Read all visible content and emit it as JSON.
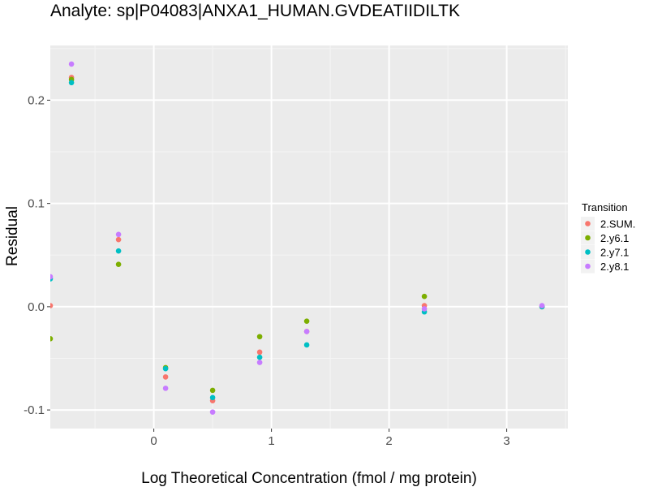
{
  "chart_data": {
    "type": "scatter",
    "title": "Analyte: sp|P04083|ANXA1_HUMAN.GVDEATIIDILTK",
    "xlabel": "Log Theoretical Concentration (fmol / mg protein)",
    "ylabel": "Residual",
    "xlim": [
      -0.88,
      3.52
    ],
    "ylim": [
      -0.118,
      0.253
    ],
    "x_ticks": [
      0,
      1,
      2,
      3
    ],
    "x_tick_labels": [
      "0",
      "1",
      "2",
      "3"
    ],
    "y_ticks": [
      -0.1,
      0.0,
      0.1,
      0.2
    ],
    "y_tick_labels": [
      "-0.1",
      "0.0",
      "0.1",
      "0.2"
    ],
    "grid": true,
    "legend": {
      "title": "Transition",
      "placement": "right"
    },
    "series": [
      {
        "name": "2.SUM.",
        "color": "#F8766D",
        "x": [
          -0.88,
          -0.7,
          -0.3,
          0.1,
          0.5,
          0.9,
          1.3,
          2.3,
          3.3
        ],
        "y": [
          0.001,
          0.222,
          0.065,
          -0.068,
          -0.091,
          -0.044,
          -0.024,
          0.001,
          0.0
        ]
      },
      {
        "name": "2.y6.1",
        "color": "#7CAE00",
        "x": [
          -0.88,
          -0.7,
          -0.3,
          0.1,
          0.5,
          0.9,
          1.3,
          2.3,
          3.3
        ],
        "y": [
          -0.031,
          0.22,
          0.041,
          -0.059,
          -0.081,
          -0.029,
          -0.014,
          0.01,
          0.0
        ]
      },
      {
        "name": "2.y7.1",
        "color": "#00BFC4",
        "x": [
          -0.88,
          -0.7,
          -0.3,
          0.1,
          0.5,
          0.9,
          1.3,
          2.3,
          3.3
        ],
        "y": [
          0.027,
          0.217,
          0.054,
          -0.06,
          -0.088,
          -0.049,
          -0.037,
          -0.005,
          0.0
        ]
      },
      {
        "name": "2.y8.1",
        "color": "#C77CFF",
        "x": [
          -0.88,
          -0.7,
          -0.3,
          0.1,
          0.5,
          0.9,
          1.3,
          2.3,
          3.3
        ],
        "y": [
          0.029,
          0.235,
          0.07,
          -0.079,
          -0.102,
          -0.054,
          -0.024,
          -0.002,
          0.001
        ]
      }
    ]
  }
}
